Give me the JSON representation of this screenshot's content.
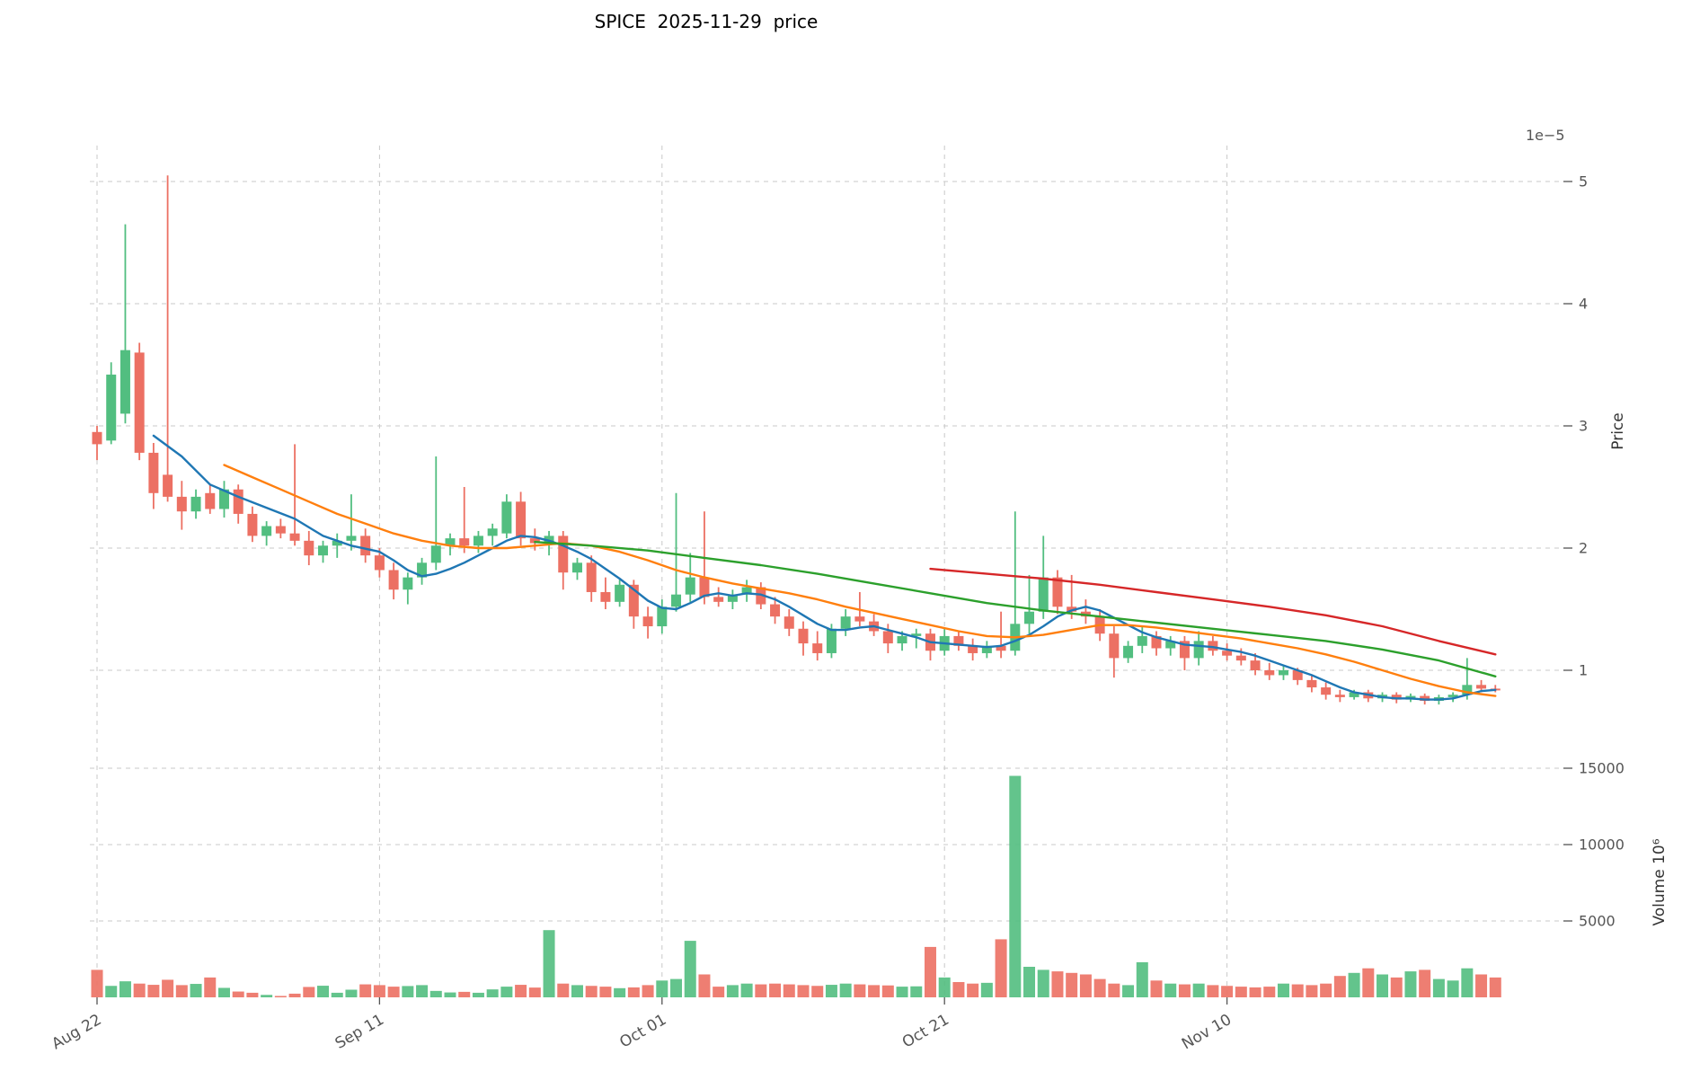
{
  "title": "SPICE  2025-11-29  price",
  "chart_data": {
    "type": "candlestick",
    "title": "SPICE  2025-11-29  price",
    "exponent_label": "1e−5",
    "price_axis": {
      "label": "Price",
      "ticks": [
        1,
        2,
        3,
        4,
        5
      ],
      "ylim": [
        0.6,
        5.3
      ],
      "scale": "1e-5"
    },
    "volume_axis": {
      "label": "Volume",
      "unit": "10⁶",
      "ticks": [
        5000,
        10000,
        15000
      ],
      "ylim": [
        0,
        15300
      ]
    },
    "x_axis": {
      "tick_labels": [
        "Aug 22",
        "Sep 11",
        "Oct 01",
        "Oct 21",
        "Nov 10"
      ],
      "tick_days": [
        0,
        20,
        40,
        60,
        80
      ]
    },
    "layout": {
      "grid": "dashed",
      "legend": "none",
      "panels": [
        "price",
        "volume"
      ]
    },
    "colors": {
      "up": "#52be80",
      "down": "#ec7063",
      "ma_short": "#1f77b4",
      "ma_mid": "#ff7f0e",
      "ma_long": "#2ca02c",
      "ma_longest": "#d62728",
      "grid": "#c9c9c9",
      "tick_text": "#555555"
    },
    "candles_format": [
      "open",
      "high",
      "low",
      "close",
      "volume_1e6"
    ],
    "candles": [
      [
        2.95,
        3.0,
        2.72,
        2.85,
        1800
      ],
      [
        2.88,
        3.52,
        2.85,
        3.42,
        750
      ],
      [
        3.1,
        4.65,
        3.02,
        3.62,
        1050
      ],
      [
        3.6,
        3.68,
        2.72,
        2.78,
        900
      ],
      [
        2.78,
        2.86,
        2.32,
        2.45,
        820
      ],
      [
        2.6,
        5.05,
        2.38,
        2.42,
        1150
      ],
      [
        2.42,
        2.55,
        2.15,
        2.3,
        800
      ],
      [
        2.3,
        2.48,
        2.24,
        2.42,
        880
      ],
      [
        2.45,
        2.52,
        2.28,
        2.32,
        1300
      ],
      [
        2.32,
        2.55,
        2.25,
        2.48,
        620
      ],
      [
        2.48,
        2.52,
        2.2,
        2.28,
        380
      ],
      [
        2.28,
        2.34,
        2.05,
        2.1,
        300
      ],
      [
        2.1,
        2.22,
        2.02,
        2.18,
        160
      ],
      [
        2.18,
        2.24,
        2.08,
        2.12,
        90
      ],
      [
        2.12,
        2.85,
        2.02,
        2.06,
        240
      ],
      [
        2.06,
        2.14,
        1.86,
        1.94,
        680
      ],
      [
        1.94,
        2.06,
        1.88,
        2.02,
        760
      ],
      [
        2.02,
        2.12,
        1.92,
        2.06,
        300
      ],
      [
        2.06,
        2.44,
        1.98,
        2.1,
        500
      ],
      [
        2.1,
        2.16,
        1.88,
        1.94,
        850
      ],
      [
        1.94,
        2.0,
        1.76,
        1.82,
        800
      ],
      [
        1.82,
        1.88,
        1.58,
        1.66,
        700
      ],
      [
        1.66,
        1.8,
        1.54,
        1.76,
        740
      ],
      [
        1.76,
        1.92,
        1.7,
        1.88,
        800
      ],
      [
        1.88,
        2.75,
        1.82,
        2.02,
        420
      ],
      [
        2.02,
        2.12,
        1.94,
        2.08,
        320
      ],
      [
        2.08,
        2.5,
        1.96,
        2.02,
        360
      ],
      [
        2.02,
        2.14,
        1.96,
        2.1,
        300
      ],
      [
        2.1,
        2.2,
        2.02,
        2.16,
        520
      ],
      [
        2.12,
        2.44,
        2.08,
        2.38,
        700
      ],
      [
        2.38,
        2.46,
        2.02,
        2.08,
        820
      ],
      [
        2.08,
        2.16,
        1.98,
        2.04,
        640
      ],
      [
        2.04,
        2.14,
        1.94,
        2.1,
        4400
      ],
      [
        2.1,
        2.14,
        1.66,
        1.8,
        900
      ],
      [
        1.8,
        1.92,
        1.74,
        1.88,
        800
      ],
      [
        1.88,
        1.94,
        1.56,
        1.64,
        750
      ],
      [
        1.64,
        1.76,
        1.5,
        1.56,
        700
      ],
      [
        1.56,
        1.74,
        1.52,
        1.7,
        600
      ],
      [
        1.7,
        1.74,
        1.34,
        1.44,
        650
      ],
      [
        1.44,
        1.52,
        1.26,
        1.36,
        800
      ],
      [
        1.36,
        1.58,
        1.3,
        1.52,
        1100
      ],
      [
        1.52,
        2.45,
        1.48,
        1.62,
        1200
      ],
      [
        1.62,
        1.96,
        1.56,
        1.76,
        3700
      ],
      [
        1.76,
        2.3,
        1.54,
        1.6,
        1500
      ],
      [
        1.6,
        1.68,
        1.52,
        1.56,
        700
      ],
      [
        1.56,
        1.66,
        1.5,
        1.62,
        800
      ],
      [
        1.62,
        1.74,
        1.56,
        1.68,
        900
      ],
      [
        1.68,
        1.72,
        1.5,
        1.54,
        850
      ],
      [
        1.54,
        1.6,
        1.38,
        1.44,
        900
      ],
      [
        1.44,
        1.5,
        1.28,
        1.34,
        850
      ],
      [
        1.34,
        1.4,
        1.12,
        1.22,
        800
      ],
      [
        1.22,
        1.32,
        1.08,
        1.14,
        750
      ],
      [
        1.14,
        1.38,
        1.1,
        1.34,
        820
      ],
      [
        1.34,
        1.5,
        1.28,
        1.44,
        900
      ],
      [
        1.44,
        1.64,
        1.36,
        1.4,
        850
      ],
      [
        1.4,
        1.46,
        1.28,
        1.32,
        800
      ],
      [
        1.32,
        1.38,
        1.14,
        1.22,
        780
      ],
      [
        1.22,
        1.32,
        1.16,
        1.28,
        700
      ],
      [
        1.28,
        1.34,
        1.18,
        1.3,
        720
      ],
      [
        1.3,
        1.34,
        1.08,
        1.16,
        3300
      ],
      [
        1.16,
        1.34,
        1.12,
        1.28,
        1300
      ],
      [
        1.28,
        1.32,
        1.16,
        1.2,
        1000
      ],
      [
        1.2,
        1.26,
        1.08,
        1.14,
        900
      ],
      [
        1.14,
        1.24,
        1.1,
        1.2,
        950
      ],
      [
        1.2,
        1.48,
        1.1,
        1.16,
        3800
      ],
      [
        1.16,
        2.3,
        1.12,
        1.38,
        14500
      ],
      [
        1.38,
        1.78,
        1.3,
        1.48,
        2000
      ],
      [
        1.48,
        2.1,
        1.42,
        1.76,
        1800
      ],
      [
        1.76,
        1.82,
        1.46,
        1.52,
        1700
      ],
      [
        1.52,
        1.78,
        1.42,
        1.48,
        1600
      ],
      [
        1.48,
        1.58,
        1.38,
        1.44,
        1500
      ],
      [
        1.44,
        1.5,
        1.24,
        1.3,
        1200
      ],
      [
        1.3,
        1.36,
        0.94,
        1.1,
        900
      ],
      [
        1.1,
        1.24,
        1.06,
        1.2,
        800
      ],
      [
        1.2,
        1.36,
        1.14,
        1.28,
        2300
      ],
      [
        1.28,
        1.32,
        1.12,
        1.18,
        1100
      ],
      [
        1.18,
        1.28,
        1.12,
        1.24,
        900
      ],
      [
        1.24,
        1.28,
        1.0,
        1.1,
        850
      ],
      [
        1.1,
        1.32,
        1.04,
        1.24,
        900
      ],
      [
        1.24,
        1.28,
        1.12,
        1.16,
        800
      ],
      [
        1.16,
        1.22,
        1.08,
        1.12,
        750
      ],
      [
        1.12,
        1.18,
        1.04,
        1.08,
        700
      ],
      [
        1.08,
        1.14,
        0.96,
        1.0,
        650
      ],
      [
        1.0,
        1.06,
        0.92,
        0.96,
        700
      ],
      [
        0.96,
        1.04,
        0.92,
        1.0,
        900
      ],
      [
        1.0,
        1.02,
        0.88,
        0.92,
        850
      ],
      [
        0.92,
        0.96,
        0.82,
        0.86,
        800
      ],
      [
        0.86,
        0.9,
        0.76,
        0.8,
        900
      ],
      [
        0.8,
        0.84,
        0.74,
        0.78,
        1400
      ],
      [
        0.78,
        0.84,
        0.76,
        0.82,
        1600
      ],
      [
        0.82,
        0.84,
        0.74,
        0.77,
        1900
      ],
      [
        0.77,
        0.82,
        0.74,
        0.8,
        1500
      ],
      [
        0.8,
        0.82,
        0.73,
        0.76,
        1300
      ],
      [
        0.76,
        0.81,
        0.74,
        0.79,
        1700
      ],
      [
        0.79,
        0.81,
        0.72,
        0.75,
        1800
      ],
      [
        0.75,
        0.8,
        0.72,
        0.78,
        1200
      ],
      [
        0.78,
        0.82,
        0.74,
        0.8,
        1100
      ],
      [
        0.8,
        1.1,
        0.76,
        0.88,
        1900
      ],
      [
        0.88,
        0.92,
        0.82,
        0.85,
        1500
      ],
      [
        0.85,
        0.88,
        0.82,
        0.84,
        1300
      ]
    ],
    "ma_lines": [
      {
        "name": "ma-line-short-blue",
        "color_key": "ma_short",
        "points": [
          [
            4,
            2.92
          ],
          [
            6,
            2.75
          ],
          [
            8,
            2.52
          ],
          [
            10,
            2.42
          ],
          [
            12,
            2.33
          ],
          [
            14,
            2.24
          ],
          [
            16,
            2.1
          ],
          [
            18,
            2.02
          ],
          [
            20,
            1.97
          ],
          [
            21,
            1.9
          ],
          [
            22,
            1.82
          ],
          [
            23,
            1.77
          ],
          [
            24,
            1.79
          ],
          [
            25,
            1.83
          ],
          [
            26,
            1.88
          ],
          [
            27,
            1.94
          ],
          [
            28,
            2.0
          ],
          [
            29,
            2.06
          ],
          [
            30,
            2.1
          ],
          [
            31,
            2.09
          ],
          [
            32,
            2.06
          ],
          [
            33,
            2.02
          ],
          [
            34,
            1.97
          ],
          [
            35,
            1.91
          ],
          [
            36,
            1.83
          ],
          [
            37,
            1.75
          ],
          [
            38,
            1.66
          ],
          [
            39,
            1.57
          ],
          [
            40,
            1.51
          ],
          [
            41,
            1.5
          ],
          [
            42,
            1.55
          ],
          [
            43,
            1.61
          ],
          [
            44,
            1.63
          ],
          [
            45,
            1.61
          ],
          [
            46,
            1.63
          ],
          [
            47,
            1.62
          ],
          [
            48,
            1.58
          ],
          [
            49,
            1.52
          ],
          [
            50,
            1.45
          ],
          [
            51,
            1.38
          ],
          [
            52,
            1.33
          ],
          [
            53,
            1.33
          ],
          [
            54,
            1.35
          ],
          [
            55,
            1.36
          ],
          [
            56,
            1.33
          ],
          [
            57,
            1.3
          ],
          [
            58,
            1.27
          ],
          [
            59,
            1.23
          ],
          [
            60,
            1.22
          ],
          [
            61,
            1.21
          ],
          [
            62,
            1.2
          ],
          [
            63,
            1.19
          ],
          [
            64,
            1.2
          ],
          [
            65,
            1.24
          ],
          [
            66,
            1.29
          ],
          [
            67,
            1.36
          ],
          [
            68,
            1.44
          ],
          [
            69,
            1.49
          ],
          [
            70,
            1.52
          ],
          [
            71,
            1.49
          ],
          [
            72,
            1.43
          ],
          [
            73,
            1.37
          ],
          [
            74,
            1.31
          ],
          [
            75,
            1.27
          ],
          [
            76,
            1.24
          ],
          [
            77,
            1.21
          ],
          [
            78,
            1.2
          ],
          [
            79,
            1.19
          ],
          [
            80,
            1.17
          ],
          [
            81,
            1.15
          ],
          [
            82,
            1.12
          ],
          [
            83,
            1.08
          ],
          [
            84,
            1.04
          ],
          [
            85,
            1.0
          ],
          [
            86,
            0.96
          ],
          [
            87,
            0.91
          ],
          [
            88,
            0.86
          ],
          [
            89,
            0.82
          ],
          [
            90,
            0.8
          ],
          [
            91,
            0.78
          ],
          [
            92,
            0.77
          ],
          [
            93,
            0.77
          ],
          [
            94,
            0.76
          ],
          [
            95,
            0.76
          ],
          [
            96,
            0.77
          ],
          [
            97,
            0.8
          ],
          [
            98,
            0.83
          ],
          [
            99,
            0.84
          ]
        ]
      },
      {
        "name": "ma-line-mid-orange",
        "color_key": "ma_mid",
        "points": [
          [
            9,
            2.68
          ],
          [
            11,
            2.58
          ],
          [
            13,
            2.48
          ],
          [
            15,
            2.38
          ],
          [
            17,
            2.28
          ],
          [
            19,
            2.2
          ],
          [
            21,
            2.12
          ],
          [
            23,
            2.06
          ],
          [
            25,
            2.02
          ],
          [
            27,
            2.0
          ],
          [
            29,
            2.0
          ],
          [
            31,
            2.02
          ],
          [
            33,
            2.04
          ],
          [
            35,
            2.02
          ],
          [
            37,
            1.97
          ],
          [
            39,
            1.9
          ],
          [
            41,
            1.82
          ],
          [
            43,
            1.76
          ],
          [
            45,
            1.71
          ],
          [
            47,
            1.67
          ],
          [
            49,
            1.63
          ],
          [
            51,
            1.58
          ],
          [
            53,
            1.52
          ],
          [
            55,
            1.47
          ],
          [
            57,
            1.42
          ],
          [
            59,
            1.37
          ],
          [
            61,
            1.32
          ],
          [
            63,
            1.28
          ],
          [
            65,
            1.27
          ],
          [
            67,
            1.29
          ],
          [
            69,
            1.33
          ],
          [
            71,
            1.37
          ],
          [
            73,
            1.37
          ],
          [
            75,
            1.35
          ],
          [
            77,
            1.32
          ],
          [
            79,
            1.29
          ],
          [
            81,
            1.26
          ],
          [
            83,
            1.22
          ],
          [
            85,
            1.18
          ],
          [
            87,
            1.13
          ],
          [
            89,
            1.07
          ],
          [
            91,
            1.0
          ],
          [
            93,
            0.93
          ],
          [
            95,
            0.87
          ],
          [
            97,
            0.82
          ],
          [
            99,
            0.79
          ]
        ]
      },
      {
        "name": "ma-line-long-green",
        "color_key": "ma_long",
        "points": [
          [
            31,
            2.05
          ],
          [
            35,
            2.02
          ],
          [
            39,
            1.98
          ],
          [
            43,
            1.92
          ],
          [
            47,
            1.86
          ],
          [
            51,
            1.79
          ],
          [
            55,
            1.71
          ],
          [
            59,
            1.63
          ],
          [
            63,
            1.55
          ],
          [
            67,
            1.49
          ],
          [
            71,
            1.44
          ],
          [
            75,
            1.39
          ],
          [
            79,
            1.34
          ],
          [
            83,
            1.29
          ],
          [
            87,
            1.24
          ],
          [
            91,
            1.17
          ],
          [
            95,
            1.08
          ],
          [
            99,
            0.95
          ]
        ]
      },
      {
        "name": "ma-line-longest-red",
        "color_key": "ma_longest",
        "points": [
          [
            59,
            1.83
          ],
          [
            63,
            1.79
          ],
          [
            67,
            1.75
          ],
          [
            71,
            1.7
          ],
          [
            75,
            1.64
          ],
          [
            79,
            1.58
          ],
          [
            83,
            1.52
          ],
          [
            87,
            1.45
          ],
          [
            91,
            1.36
          ],
          [
            95,
            1.24
          ],
          [
            99,
            1.13
          ]
        ]
      }
    ]
  }
}
